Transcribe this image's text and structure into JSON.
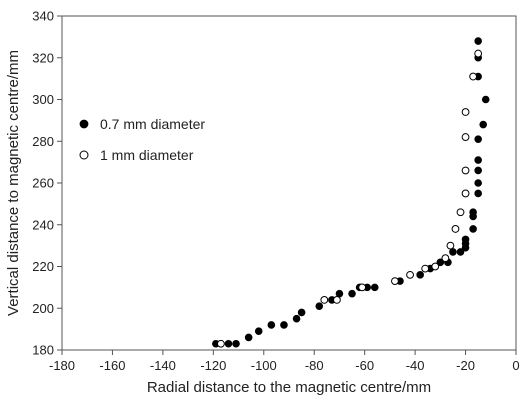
{
  "chart_data": {
    "type": "scatter",
    "title": "",
    "xlabel": "Radial distance to the magnetic centre/mm",
    "ylabel": "Vertical distance to magnetic centre/mm",
    "xlim": [
      -180,
      0
    ],
    "ylim": [
      180,
      340
    ],
    "xticks": [
      -180,
      -160,
      -140,
      -120,
      -100,
      -80,
      -60,
      -40,
      -20,
      0
    ],
    "yticks": [
      180,
      200,
      220,
      240,
      260,
      280,
      300,
      320,
      340
    ],
    "xtick_labels": [
      "-180",
      "-160",
      "-140",
      "-120",
      "-100",
      "-80",
      "-60",
      "-40",
      "-20",
      "0"
    ],
    "ytick_labels": [
      "180",
      "200",
      "220",
      "240",
      "260",
      "280",
      "300",
      "320",
      "340"
    ],
    "grid": false,
    "legend_position": "left",
    "series": [
      {
        "name": "0.7 mm diameter",
        "marker": "filled-circle",
        "color": "#000000",
        "points": [
          [
            -119,
            183
          ],
          [
            -114,
            183
          ],
          [
            -111,
            183
          ],
          [
            -106,
            186
          ],
          [
            -102,
            189
          ],
          [
            -97,
            192
          ],
          [
            -92,
            192
          ],
          [
            -87,
            195
          ],
          [
            -85,
            198
          ],
          [
            -78,
            201
          ],
          [
            -73,
            204
          ],
          [
            -70,
            207
          ],
          [
            -65,
            207
          ],
          [
            -62,
            210
          ],
          [
            -59,
            210
          ],
          [
            -56,
            210
          ],
          [
            -46,
            213
          ],
          [
            -38,
            216
          ],
          [
            -34,
            219
          ],
          [
            -30,
            222
          ],
          [
            -27,
            222
          ],
          [
            -25,
            227
          ],
          [
            -22,
            227
          ],
          [
            -20,
            229
          ],
          [
            -20,
            231
          ],
          [
            -20,
            233
          ],
          [
            -17,
            238
          ],
          [
            -17,
            244
          ],
          [
            -17,
            246
          ],
          [
            -15,
            255
          ],
          [
            -15,
            260
          ],
          [
            -15,
            266
          ],
          [
            -15,
            271
          ],
          [
            -15,
            281
          ],
          [
            -13,
            288
          ],
          [
            -12,
            300
          ],
          [
            -15,
            311
          ],
          [
            -15,
            320
          ],
          [
            -15,
            328
          ]
        ]
      },
      {
        "name": "1 mm diameter",
        "marker": "open-circle",
        "color": "#000000",
        "points": [
          [
            -117,
            183
          ],
          [
            -76,
            204
          ],
          [
            -71,
            204
          ],
          [
            -61,
            210
          ],
          [
            -48,
            213
          ],
          [
            -42,
            216
          ],
          [
            -36,
            219
          ],
          [
            -32,
            220
          ],
          [
            -28,
            224
          ],
          [
            -26,
            230
          ],
          [
            -24,
            238
          ],
          [
            -22,
            246
          ],
          [
            -20,
            255
          ],
          [
            -20,
            266
          ],
          [
            -20,
            282
          ],
          [
            -20,
            294
          ],
          [
            -17,
            311
          ],
          [
            -15,
            322
          ]
        ]
      }
    ]
  }
}
